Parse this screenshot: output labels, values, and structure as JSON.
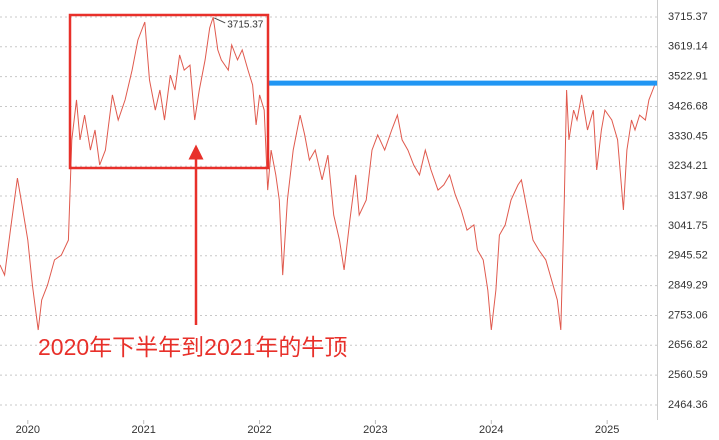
{
  "chart_data": {
    "type": "line",
    "annotation": "2020年下半年到2021年的牛顶",
    "peak": {
      "x": 2021.6,
      "value": 3715.37
    },
    "hline": {
      "value": 3502,
      "from": 2022.07,
      "color": "#2196f3"
    },
    "xlim": [
      2019.76,
      2025.43
    ],
    "xticks": [
      2020,
      2021,
      2022,
      2023,
      2024,
      2025
    ],
    "ylim": [
      2416,
      3770
    ],
    "yticks": [
      3715.37,
      3619.14,
      3522.91,
      3426.68,
      3330.45,
      3234.21,
      3137.98,
      3041.75,
      2945.52,
      2849.29,
      2753.06,
      2656.82,
      2560.59,
      2464.36
    ],
    "grid": true,
    "series": [
      {
        "color": "#e05a4e",
        "x": [
          2019.76,
          2019.8,
          2019.85,
          2019.91,
          2019.95,
          2020.0,
          2020.04,
          2020.09,
          2020.12,
          2020.17,
          2020.23,
          2020.29,
          2020.35,
          2020.38,
          2020.42,
          2020.45,
          2020.49,
          2020.54,
          2020.58,
          2020.62,
          2020.67,
          2020.73,
          2020.78,
          2020.84,
          2020.9,
          2020.95,
          2021.01,
          2021.05,
          2021.1,
          2021.14,
          2021.18,
          2021.23,
          2021.27,
          2021.31,
          2021.35,
          2021.4,
          2021.44,
          2021.48,
          2021.53,
          2021.57,
          2021.6,
          2021.64,
          2021.67,
          2021.73,
          2021.76,
          2021.81,
          2021.85,
          2021.9,
          2021.94,
          2021.97,
          2022.0,
          2022.04,
          2022.07,
          2022.1,
          2022.14,
          2022.17,
          2022.2,
          2022.24,
          2022.29,
          2022.35,
          2022.39,
          2022.43,
          2022.48,
          2022.54,
          2022.59,
          2022.64,
          2022.69,
          2022.73,
          2022.78,
          2022.83,
          2022.86,
          2022.92,
          2022.97,
          2023.02,
          2023.08,
          2023.14,
          2023.19,
          2023.23,
          2023.28,
          2023.33,
          2023.38,
          2023.43,
          2023.48,
          2023.54,
          2023.59,
          2023.64,
          2023.69,
          2023.74,
          2023.79,
          2023.85,
          2023.88,
          2023.93,
          2023.97,
          2024.0,
          2024.04,
          2024.07,
          2024.12,
          2024.17,
          2024.23,
          2024.26,
          2024.31,
          2024.36,
          2024.41,
          2024.47,
          2024.52,
          2024.57,
          2024.6,
          2024.63,
          2024.65,
          2024.67,
          2024.71,
          2024.74,
          2024.78,
          2024.83,
          2024.88,
          2024.91,
          2024.95,
          2024.98,
          2025.04,
          2025.09,
          2025.14,
          2025.17,
          2025.21,
          2025.24,
          2025.28,
          2025.33,
          2025.36,
          2025.41
        ],
        "values": [
          2916,
          2883,
          3028,
          3196,
          3109,
          2996,
          2851,
          2706,
          2803,
          2851,
          2932,
          2948,
          2996,
          3319,
          3448,
          3319,
          3399,
          3286,
          3351,
          3238,
          3286,
          3464,
          3383,
          3448,
          3544,
          3641,
          3699,
          3512,
          3415,
          3480,
          3383,
          3528,
          3480,
          3593,
          3544,
          3560,
          3383,
          3480,
          3577,
          3680,
          3715,
          3609,
          3577,
          3544,
          3625,
          3577,
          3609,
          3544,
          3496,
          3367,
          3464,
          3415,
          3157,
          3286,
          3206,
          3125,
          2883,
          3125,
          3286,
          3399,
          3335,
          3254,
          3286,
          3190,
          3270,
          3077,
          2996,
          2900,
          3061,
          3206,
          3077,
          3125,
          3286,
          3335,
          3286,
          3351,
          3399,
          3319,
          3286,
          3238,
          3206,
          3286,
          3222,
          3157,
          3174,
          3206,
          3141,
          3093,
          3028,
          3045,
          2964,
          2932,
          2835,
          2706,
          2835,
          3012,
          3045,
          3125,
          3174,
          3190,
          3093,
          2996,
          2964,
          2932,
          2867,
          2803,
          2706,
          3125,
          3480,
          3319,
          3415,
          3383,
          3464,
          3351,
          3415,
          3222,
          3351,
          3415,
          3383,
          3319,
          3093,
          3286,
          3383,
          3351,
          3399,
          3383,
          3448,
          3496
        ]
      }
    ]
  }
}
